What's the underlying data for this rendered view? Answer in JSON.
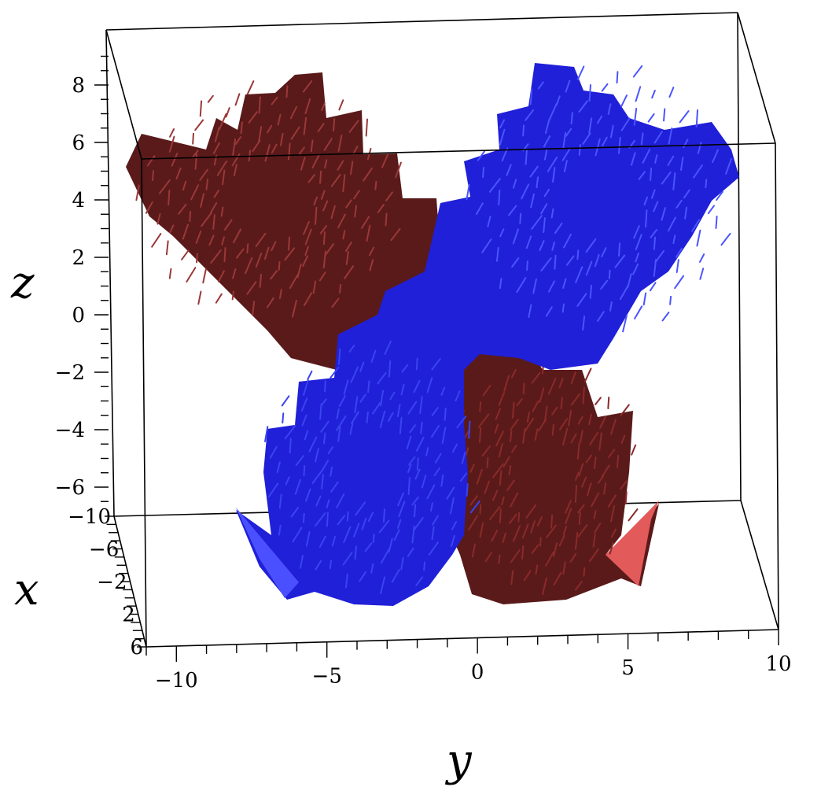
{
  "chart_data": {
    "type": "surface3d",
    "title": "",
    "axes": {
      "z": {
        "label": "z",
        "range": [
          -7,
          9
        ],
        "ticks": [
          8,
          6,
          4,
          2,
          0,
          -2,
          -4,
          -6
        ],
        "tick_labels": [
          "8",
          "6",
          "4",
          "2",
          "0",
          "−2",
          "−4",
          "−6"
        ]
      },
      "x": {
        "label": "x",
        "range": [
          -10,
          6
        ],
        "ticks": [
          -10,
          -6,
          -2,
          2,
          6
        ],
        "tick_labels": [
          "−10",
          "−6",
          "−2",
          "2",
          "6"
        ]
      },
      "y": {
        "label": "y",
        "range": [
          -11,
          10
        ],
        "ticks": [
          -10,
          -5,
          0,
          5,
          10
        ],
        "tick_labels": [
          "−10",
          "−5",
          "0",
          "5",
          "10"
        ]
      }
    },
    "series": [
      {
        "color": "#5a1a1a",
        "highlight": "#e35a5a"
      },
      {
        "color": "#2020d8",
        "highlight": "#4a50ff"
      }
    ],
    "box": true,
    "legend": "none"
  }
}
